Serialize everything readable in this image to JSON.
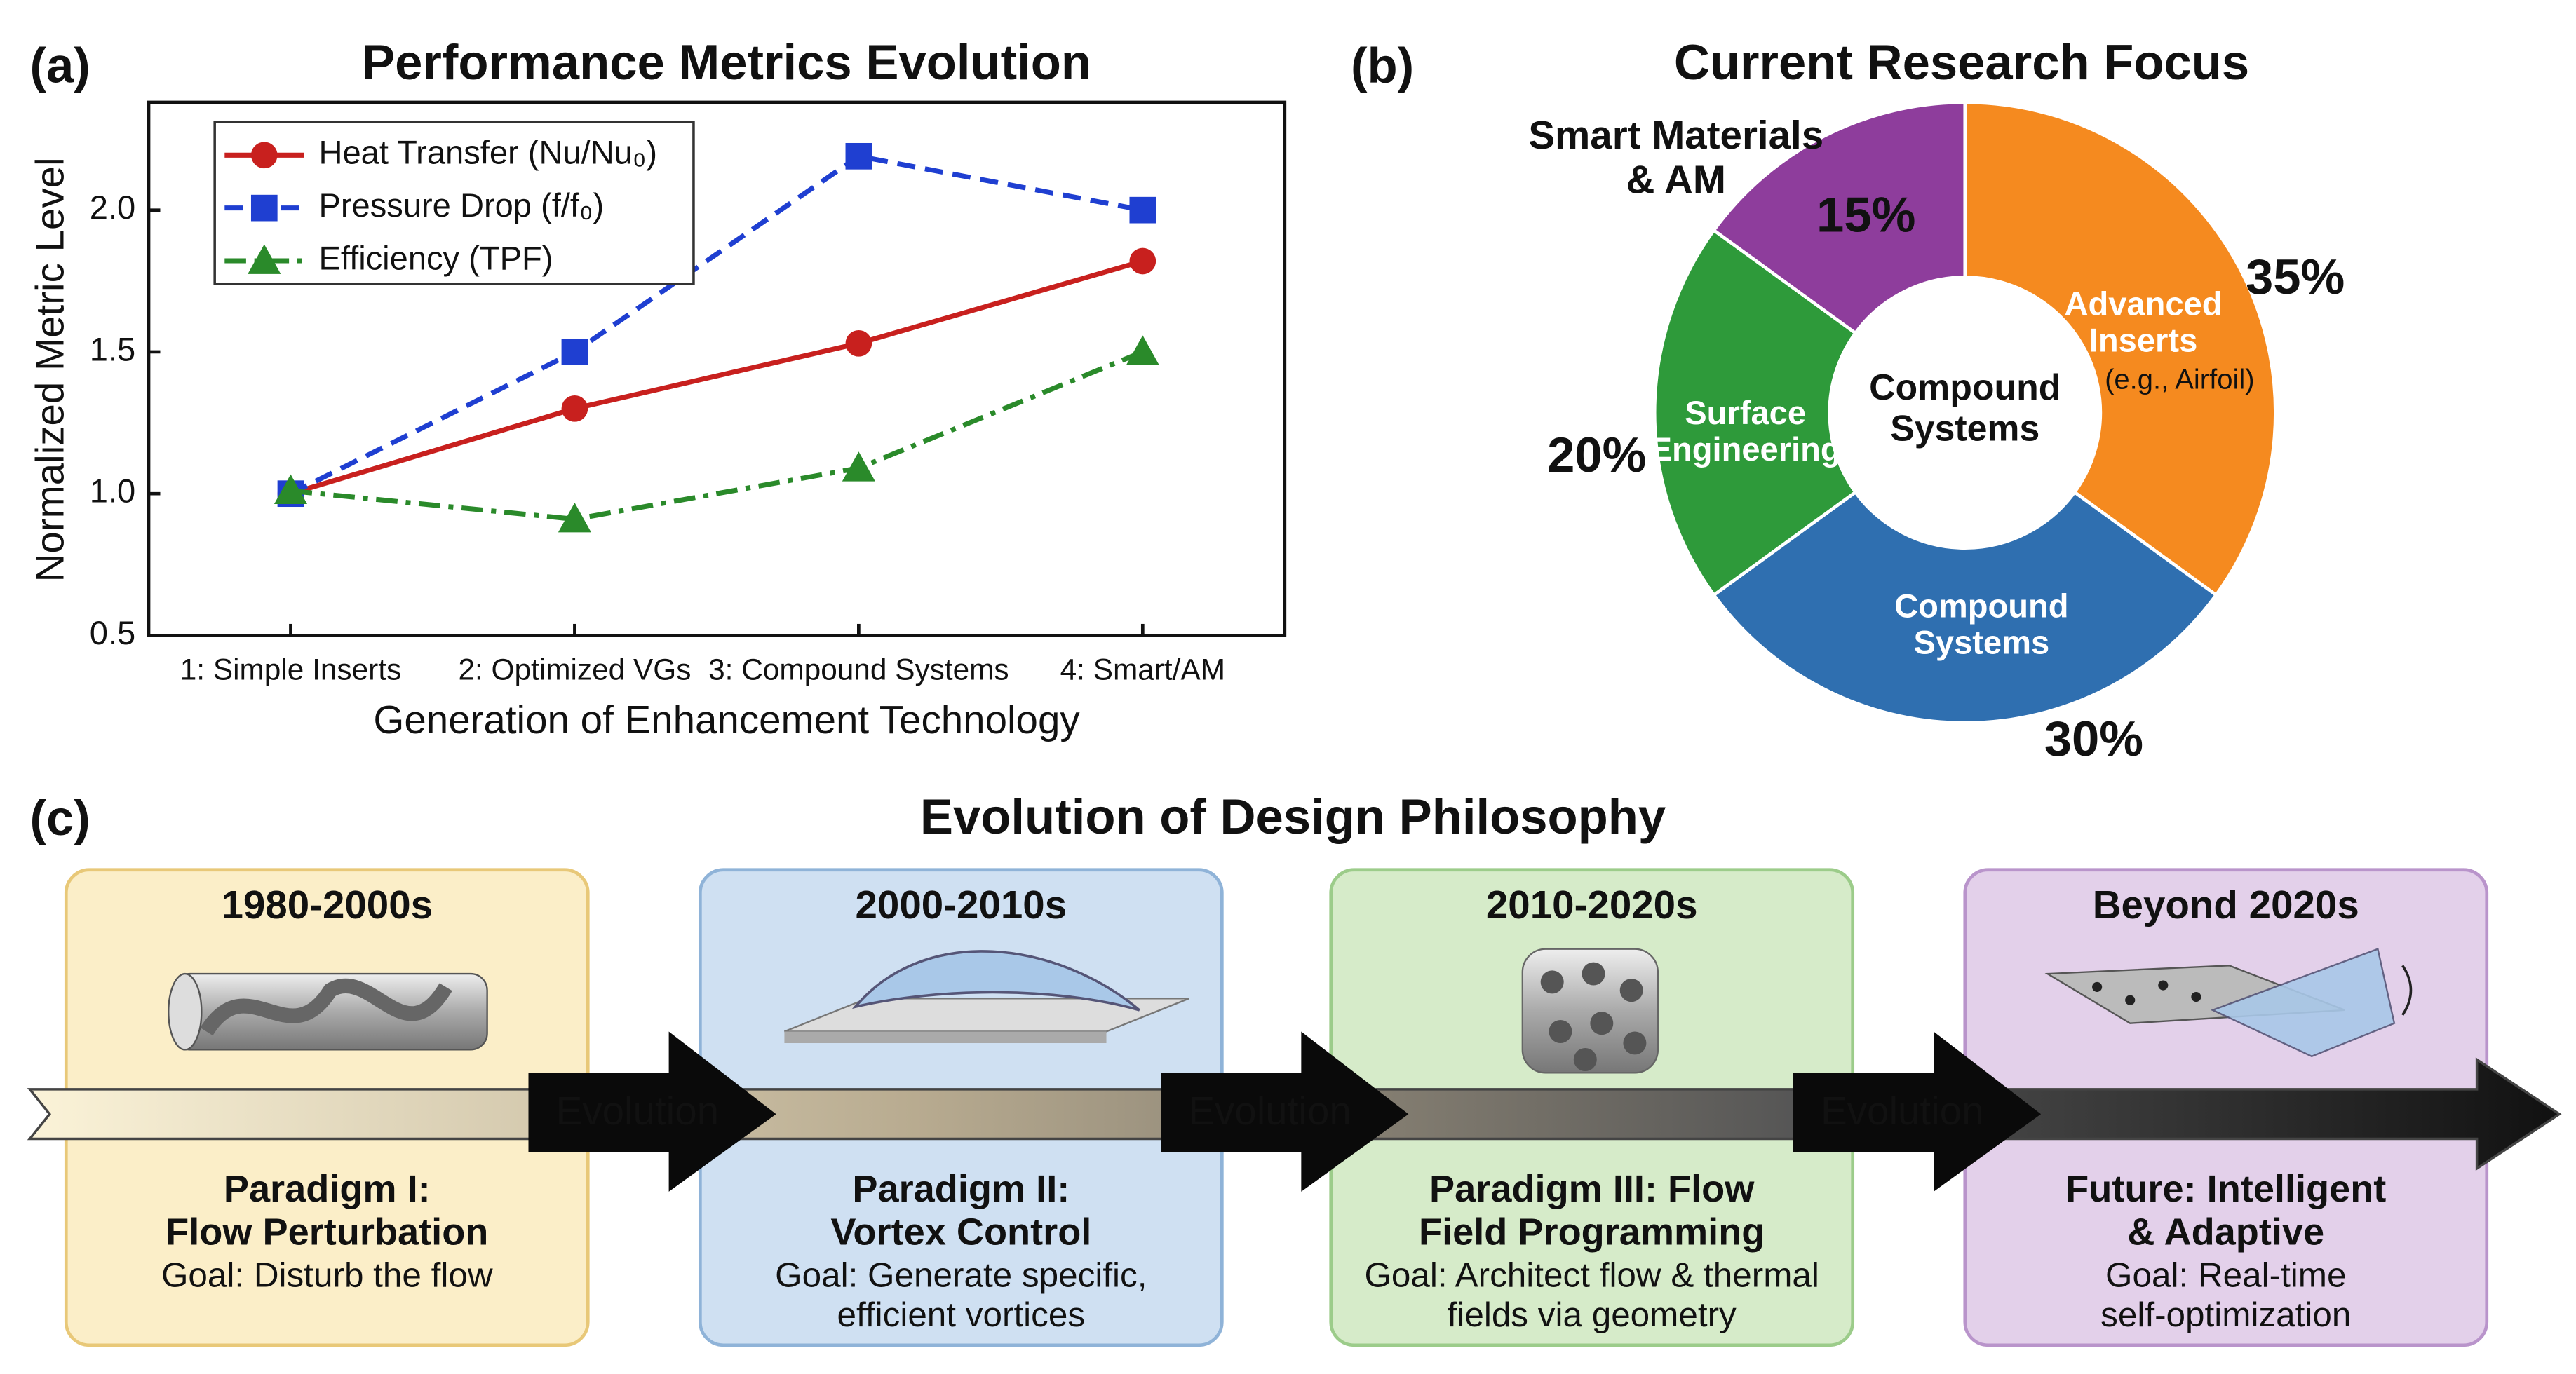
{
  "chart_data": [
    {
      "type": "line",
      "label": "(a)",
      "title": "Performance Metrics Evolution",
      "x_label": "Generation of Enhancement Technology",
      "y_label": "Normalized Metric Level",
      "categories": [
        "1: Simple Inserts",
        "2: Optimized VGs",
        "3: Compound Systems",
        "4: Smart/AM"
      ],
      "series": [
        {
          "name": "Heat Transfer (Nu/Nu₀)",
          "color": "#c8201e",
          "linestyle": "solid",
          "marker": "circle",
          "values": [
            1.0,
            1.3,
            1.53,
            1.82
          ]
        },
        {
          "name": "Pressure Drop (f/f₀)",
          "color": "#1f3fd1",
          "linestyle": "dashed",
          "marker": "square",
          "values": [
            1.0,
            1.5,
            2.19,
            2.0
          ]
        },
        {
          "name": "Efficiency (TPF)",
          "color": "#2a8a2a",
          "linestyle": "dashdot",
          "marker": "triangle",
          "values": [
            1.01,
            0.91,
            1.09,
            1.5
          ]
        }
      ],
      "ylim": [
        0.5,
        2.38
      ],
      "yticks": [
        0.5,
        {
          "value": 1,
          "label": "1.0"
        },
        1.5,
        {
          "value": 2,
          "label": "2.0"
        }
      ],
      "legend": "upper left",
      "grid": false
    },
    {
      "type": "donut",
      "label": "(b)",
      "title": "Current Research Focus",
      "categories": [
        "Advanced Inserts",
        "Compound Systems",
        "Surface Engineering",
        "Smart Materials & AM"
      ],
      "values": [
        35,
        30,
        20,
        15
      ],
      "value_labels": [
        "35%",
        "30%",
        "20%",
        "15%"
      ],
      "colors": [
        "#f58a1f",
        "#2f6fb0",
        "#2e9a3a",
        "#8e3d9c"
      ],
      "annotation": "(e.g., Airfoil)",
      "center_label": "Compound Systems"
    }
  ],
  "timeline": {
    "label": "(c)",
    "title": "Evolution of Design Philosophy",
    "arrow_labels": [
      "Evolution",
      "Evolution",
      "Evolution"
    ],
    "stages": [
      {
        "period": "1980-2000s",
        "title": [
          "Paradigm I:",
          "Flow Perturbation"
        ],
        "goal": [
          "Goal: Disturb the flow"
        ]
      },
      {
        "period": "2000-2010s",
        "title": [
          "Paradigm II:",
          "Vortex Control"
        ],
        "goal": [
          "Goal: Generate specific,",
          "efficient vortices"
        ]
      },
      {
        "period": "2010-2020s",
        "title": [
          "Paradigm III: Flow",
          "Field Programming"
        ],
        "goal": [
          "Goal: Architect flow & thermal",
          "fields via geometry"
        ]
      },
      {
        "period": "Beyond 2020s",
        "title": [
          "Future: Intelligent",
          "& Adaptive"
        ],
        "goal": [
          "Goal: Real-time",
          "self-optimization"
        ]
      }
    ]
  }
}
